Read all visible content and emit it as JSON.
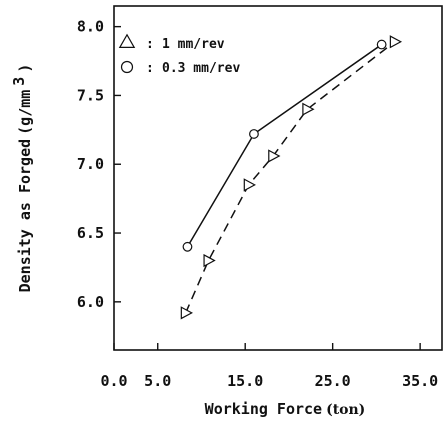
{
  "chart_data": {
    "type": "line",
    "xlabel": "Working Force",
    "xunit": "(ton)",
    "ylabel": "Density as Forged",
    "yunit": "(g/mm",
    "yunit_sup": "3",
    "yunit_close": ")",
    "xlim": [
      0.0,
      37.5
    ],
    "ylim": [
      5.65,
      8.15
    ],
    "x_ticks": [
      0.0,
      5.0,
      15.0,
      25.0,
      35.0
    ],
    "x_tick_labels": [
      "0.0",
      "5.0",
      "15.0",
      "25.0",
      "35.0"
    ],
    "y_ticks": [
      6.0,
      6.5,
      7.0,
      7.5,
      8.0
    ],
    "y_tick_labels": [
      "6.0",
      "6.5",
      "7.0",
      "7.5",
      "8.0"
    ],
    "grid": false,
    "legend_position": "top-left",
    "series": [
      {
        "name": "1    mm/rev",
        "legend_prefix": ":",
        "marker": "triangle-right",
        "line_style": "dashed",
        "x": [
          8.2,
          10.8,
          15.4,
          18.2,
          22.1,
          32.1
        ],
        "y": [
          5.92,
          6.3,
          6.85,
          7.06,
          7.4,
          7.89
        ]
      },
      {
        "name": "0.3 mm/rev",
        "legend_prefix": ":",
        "marker": "circle",
        "line_style": "solid",
        "x": [
          8.4,
          16.0,
          30.6
        ],
        "y": [
          6.4,
          7.22,
          7.87
        ]
      }
    ]
  }
}
